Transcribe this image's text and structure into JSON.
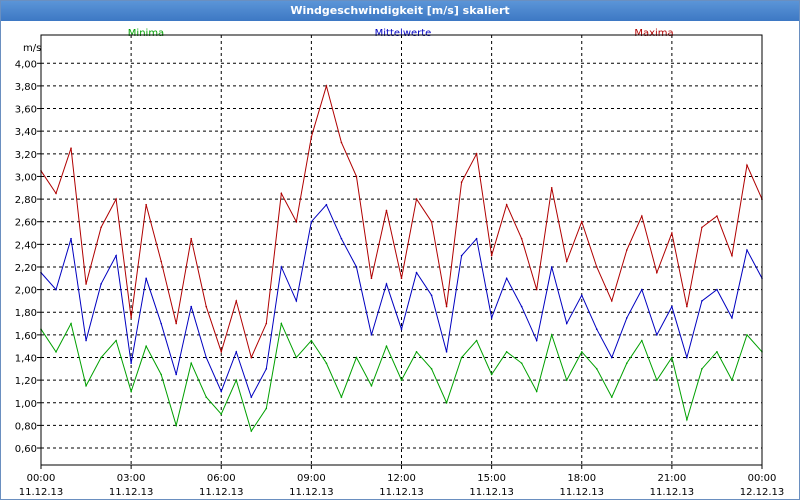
{
  "window": {
    "title": "Windgeschwindigkeit [m/s] skaliert"
  },
  "chart_data": {
    "type": "line",
    "title": "Windgeschwindigkeit [m/s] skaliert",
    "ylabel": "m/s",
    "xlabel": "",
    "ylim": [
      0.45,
      4.25
    ],
    "y_ticks": [
      "0,60",
      "0,80",
      "1,00",
      "1,20",
      "1,40",
      "1,60",
      "1,80",
      "2,00",
      "2,20",
      "2,40",
      "2,60",
      "2,80",
      "3,00",
      "3,20",
      "3,40",
      "3,60",
      "3,80",
      "4,00"
    ],
    "x_ticks": [
      {
        "time": "00:00",
        "date": "11.12.13"
      },
      {
        "time": "03:00",
        "date": "11.12.13"
      },
      {
        "time": "06:00",
        "date": "11.12.13"
      },
      {
        "time": "09:00",
        "date": "11.12.13"
      },
      {
        "time": "12:00",
        "date": "11.12.13"
      },
      {
        "time": "15:00",
        "date": "11.12.13"
      },
      {
        "time": "18:00",
        "date": "11.12.13"
      },
      {
        "time": "21:00",
        "date": "11.12.13"
      },
      {
        "time": "00:00",
        "date": "12.12.13"
      }
    ],
    "grid": true,
    "x_hours": [
      0,
      0.5,
      1,
      1.5,
      2,
      2.5,
      3,
      3.5,
      4,
      4.5,
      5,
      5.5,
      6,
      6.5,
      7,
      7.5,
      8,
      8.5,
      9,
      9.5,
      10,
      10.5,
      11,
      11.5,
      12,
      12.5,
      13,
      13.5,
      14,
      14.5,
      15,
      15.5,
      16,
      16.5,
      17,
      17.5,
      18,
      18.5,
      19,
      19.5,
      20,
      20.5,
      21,
      21.5,
      22,
      22.5,
      23,
      23.5,
      24
    ],
    "series": [
      {
        "name": "Minima",
        "color": "#00a000",
        "values": [
          1.65,
          1.45,
          1.7,
          1.15,
          1.4,
          1.55,
          1.1,
          1.5,
          1.25,
          0.8,
          1.35,
          1.05,
          0.9,
          1.2,
          0.75,
          0.95,
          1.7,
          1.4,
          1.55,
          1.35,
          1.05,
          1.4,
          1.15,
          1.5,
          1.2,
          1.45,
          1.3,
          1.0,
          1.4,
          1.55,
          1.25,
          1.45,
          1.35,
          1.1,
          1.6,
          1.2,
          1.45,
          1.3,
          1.05,
          1.35,
          1.55,
          1.2,
          1.4,
          0.85,
          1.3,
          1.45,
          1.2,
          1.6,
          1.45
        ]
      },
      {
        "name": "Mittelwerte",
        "color": "#0000c0",
        "values": [
          2.15,
          2.0,
          2.45,
          1.55,
          2.05,
          2.3,
          1.35,
          2.1,
          1.7,
          1.25,
          1.85,
          1.4,
          1.1,
          1.45,
          1.05,
          1.3,
          2.2,
          1.9,
          2.6,
          2.75,
          2.45,
          2.2,
          1.6,
          2.05,
          1.65,
          2.15,
          1.95,
          1.45,
          2.3,
          2.45,
          1.75,
          2.1,
          1.85,
          1.55,
          2.2,
          1.7,
          1.95,
          1.65,
          1.4,
          1.75,
          2.0,
          1.6,
          1.85,
          1.4,
          1.9,
          2.0,
          1.75,
          2.35,
          2.1
        ]
      },
      {
        "name": "Maxima",
        "color": "#b00000",
        "values": [
          3.05,
          2.85,
          3.25,
          2.05,
          2.55,
          2.8,
          1.75,
          2.75,
          2.25,
          1.7,
          2.45,
          1.85,
          1.45,
          1.9,
          1.4,
          1.7,
          2.85,
          2.6,
          3.35,
          3.8,
          3.3,
          3.0,
          2.1,
          2.7,
          2.1,
          2.8,
          2.6,
          1.85,
          2.95,
          3.2,
          2.3,
          2.75,
          2.45,
          2.0,
          2.9,
          2.25,
          2.6,
          2.2,
          1.9,
          2.35,
          2.65,
          2.15,
          2.5,
          1.85,
          2.55,
          2.65,
          2.3,
          3.1,
          2.8
        ]
      }
    ]
  }
}
